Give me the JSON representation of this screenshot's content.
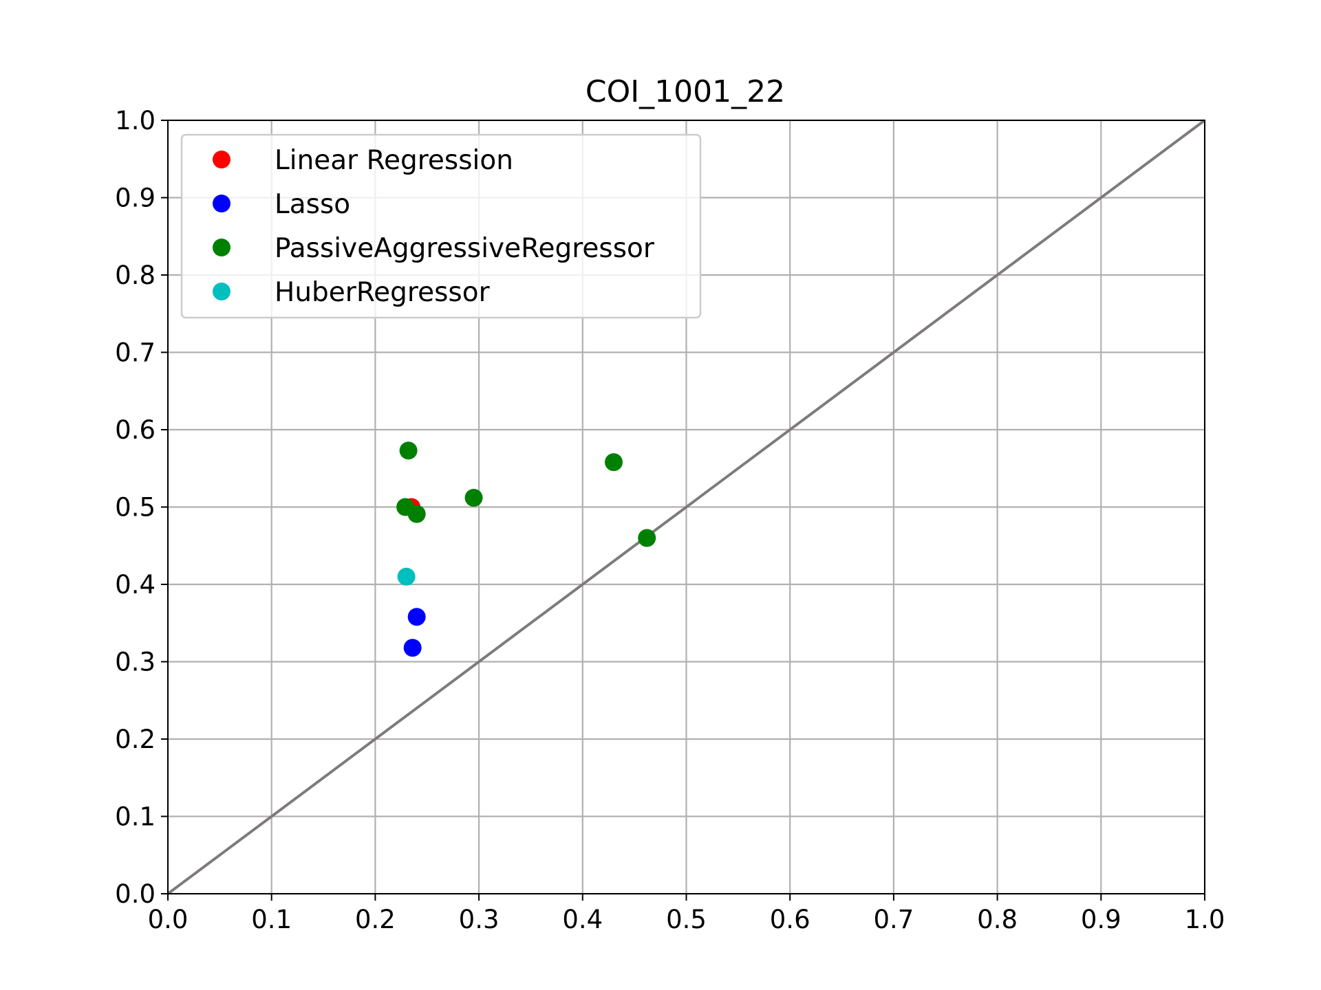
{
  "chart_data": {
    "type": "scatter",
    "title": "COI_1001_22",
    "xlabel": "",
    "ylabel": "",
    "xlim": [
      0.0,
      1.0
    ],
    "ylim": [
      0.0,
      1.0
    ],
    "x_ticks": [
      "0.0",
      "0.1",
      "0.2",
      "0.3",
      "0.4",
      "0.5",
      "0.6",
      "0.7",
      "0.8",
      "0.9",
      "1.0"
    ],
    "y_ticks": [
      "0.0",
      "0.1",
      "0.2",
      "0.3",
      "0.4",
      "0.5",
      "0.6",
      "0.7",
      "0.8",
      "0.9",
      "1.0"
    ],
    "grid": true,
    "legend_position": "top-left",
    "reference_line": {
      "from": [
        0.0,
        0.0
      ],
      "to": [
        1.0,
        1.0
      ],
      "color": "#807b7b"
    },
    "series": [
      {
        "name": "Linear Regression",
        "color": "#ff0000",
        "points": [
          [
            0.235,
            0.5
          ]
        ]
      },
      {
        "name": "Lasso",
        "color": "#0000ff",
        "points": [
          [
            0.24,
            0.358
          ],
          [
            0.236,
            0.318
          ]
        ]
      },
      {
        "name": "PassiveAggressiveRegressor",
        "color": "#008000",
        "points": [
          [
            0.232,
            0.573
          ],
          [
            0.229,
            0.5
          ],
          [
            0.24,
            0.491
          ],
          [
            0.295,
            0.512
          ],
          [
            0.43,
            0.558
          ],
          [
            0.462,
            0.46
          ]
        ]
      },
      {
        "name": "HuberRegressor",
        "color": "#00bfbf",
        "points": [
          [
            0.23,
            0.41
          ]
        ]
      }
    ]
  }
}
